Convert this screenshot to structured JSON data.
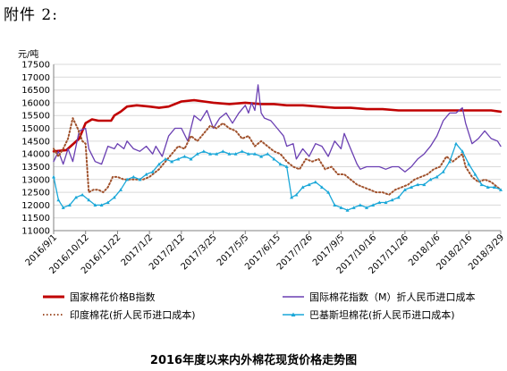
{
  "header": {
    "text": "附件 2:"
  },
  "caption": "2016年度以来内外棉花现货价格走势图",
  "colors": {
    "china_b": "#c00000",
    "intl_m": "#6a3fb2",
    "india": "#a0522d",
    "pakistan": "#1aa7d8",
    "grid": "#d9d9d9",
    "axis": "#808080"
  },
  "chart_data": {
    "type": "line",
    "title": "",
    "ylabel": "元/吨",
    "xlabel": "",
    "ylim": [
      11000,
      17500
    ],
    "y_ticks": [
      11000,
      11500,
      12000,
      12500,
      13000,
      13500,
      14000,
      14500,
      15000,
      15500,
      16000,
      16500,
      17000,
      17500
    ],
    "x_ticks": [
      "2016/9/1",
      "2016/10/12",
      "2016/11/22",
      "2017/1/2",
      "2017/2/12",
      "2017/3/25",
      "2017/5/5",
      "2017/6/15",
      "2017/7/26",
      "2017/9/5",
      "2017/10/16",
      "2017/11/26",
      "2018/1/6",
      "2018/2/16",
      "2018/3/29"
    ],
    "x_range_index": [
      0,
      14
    ],
    "grid": true,
    "legend_position": "bottom",
    "series": [
      {
        "name": "国家棉花价格B指数",
        "style": "solid-thick",
        "points": [
          [
            0,
            14100
          ],
          [
            0.4,
            14150
          ],
          [
            0.8,
            14600
          ],
          [
            1.0,
            15200
          ],
          [
            1.2,
            15350
          ],
          [
            1.4,
            15300
          ],
          [
            1.6,
            15300
          ],
          [
            1.8,
            15300
          ],
          [
            1.9,
            15500
          ],
          [
            2.1,
            15650
          ],
          [
            2.3,
            15850
          ],
          [
            2.6,
            15900
          ],
          [
            3.0,
            15850
          ],
          [
            3.3,
            15800
          ],
          [
            3.6,
            15850
          ],
          [
            4.0,
            16050
          ],
          [
            4.4,
            16100
          ],
          [
            4.7,
            16050
          ],
          [
            5.0,
            16000
          ],
          [
            5.5,
            15950
          ],
          [
            6.0,
            16000
          ],
          [
            6.5,
            15950
          ],
          [
            6.9,
            15950
          ],
          [
            7.3,
            15900
          ],
          [
            7.8,
            15900
          ],
          [
            8.3,
            15850
          ],
          [
            8.8,
            15800
          ],
          [
            9.3,
            15800
          ],
          [
            9.8,
            15750
          ],
          [
            10.3,
            15750
          ],
          [
            10.8,
            15700
          ],
          [
            11.3,
            15700
          ],
          [
            11.8,
            15700
          ],
          [
            12.3,
            15700
          ],
          [
            12.8,
            15700
          ],
          [
            13.3,
            15700
          ],
          [
            13.7,
            15700
          ],
          [
            14.0,
            15650
          ]
        ]
      },
      {
        "name": "国际棉花指数（M）折人民币进口成本",
        "style": "solid",
        "points": [
          [
            0,
            13700
          ],
          [
            0.15,
            14100
          ],
          [
            0.3,
            13600
          ],
          [
            0.45,
            14200
          ],
          [
            0.6,
            13700
          ],
          [
            0.8,
            14900
          ],
          [
            1.0,
            15000
          ],
          [
            1.1,
            14200
          ],
          [
            1.3,
            13700
          ],
          [
            1.5,
            13600
          ],
          [
            1.7,
            14300
          ],
          [
            1.9,
            14200
          ],
          [
            2.0,
            14400
          ],
          [
            2.2,
            14200
          ],
          [
            2.3,
            14500
          ],
          [
            2.5,
            14200
          ],
          [
            2.7,
            14100
          ],
          [
            2.9,
            14300
          ],
          [
            3.1,
            14000
          ],
          [
            3.2,
            14300
          ],
          [
            3.4,
            13900
          ],
          [
            3.6,
            14700
          ],
          [
            3.8,
            15000
          ],
          [
            4.0,
            15000
          ],
          [
            4.2,
            14500
          ],
          [
            4.4,
            15500
          ],
          [
            4.6,
            15300
          ],
          [
            4.8,
            15700
          ],
          [
            5.0,
            15000
          ],
          [
            5.2,
            15400
          ],
          [
            5.4,
            15600
          ],
          [
            5.6,
            15200
          ],
          [
            5.8,
            15600
          ],
          [
            6.0,
            15900
          ],
          [
            6.1,
            15600
          ],
          [
            6.2,
            16000
          ],
          [
            6.3,
            15700
          ],
          [
            6.4,
            16700
          ],
          [
            6.5,
            15600
          ],
          [
            6.6,
            15400
          ],
          [
            6.8,
            15300
          ],
          [
            7.0,
            15000
          ],
          [
            7.2,
            14700
          ],
          [
            7.3,
            14300
          ],
          [
            7.5,
            14400
          ],
          [
            7.6,
            13800
          ],
          [
            7.8,
            14200
          ],
          [
            8.0,
            13900
          ],
          [
            8.2,
            14400
          ],
          [
            8.4,
            14300
          ],
          [
            8.6,
            13900
          ],
          [
            8.8,
            14500
          ],
          [
            9.0,
            14200
          ],
          [
            9.1,
            14800
          ],
          [
            9.3,
            14200
          ],
          [
            9.5,
            13600
          ],
          [
            9.6,
            13400
          ],
          [
            9.8,
            13500
          ],
          [
            10.0,
            13500
          ],
          [
            10.2,
            13500
          ],
          [
            10.4,
            13400
          ],
          [
            10.6,
            13500
          ],
          [
            10.8,
            13500
          ],
          [
            11.0,
            13300
          ],
          [
            11.2,
            13500
          ],
          [
            11.4,
            13800
          ],
          [
            11.6,
            14000
          ],
          [
            11.8,
            14300
          ],
          [
            12.0,
            14700
          ],
          [
            12.2,
            15300
          ],
          [
            12.4,
            15600
          ],
          [
            12.6,
            15600
          ],
          [
            12.8,
            15800
          ],
          [
            12.9,
            15200
          ],
          [
            13.0,
            14800
          ],
          [
            13.1,
            14400
          ],
          [
            13.3,
            14600
          ],
          [
            13.5,
            14900
          ],
          [
            13.7,
            14600
          ],
          [
            13.9,
            14500
          ],
          [
            14.0,
            14300
          ]
        ]
      },
      {
        "name": "印度棉花(折人民币进口成本)",
        "style": "dotted",
        "points": [
          [
            0,
            14200
          ],
          [
            0.15,
            13900
          ],
          [
            0.3,
            14200
          ],
          [
            0.45,
            14600
          ],
          [
            0.6,
            15400
          ],
          [
            0.75,
            15000
          ],
          [
            0.9,
            14500
          ],
          [
            1.0,
            14400
          ],
          [
            1.1,
            12500
          ],
          [
            1.25,
            12600
          ],
          [
            1.4,
            12600
          ],
          [
            1.55,
            12500
          ],
          [
            1.7,
            12700
          ],
          [
            1.85,
            13100
          ],
          [
            2.0,
            13100
          ],
          [
            2.2,
            13000
          ],
          [
            2.5,
            13000
          ],
          [
            2.8,
            13000
          ],
          [
            3.0,
            13100
          ],
          [
            3.3,
            13400
          ],
          [
            3.5,
            13700
          ],
          [
            3.7,
            14000
          ],
          [
            3.9,
            14300
          ],
          [
            4.1,
            14200
          ],
          [
            4.3,
            14700
          ],
          [
            4.5,
            14500
          ],
          [
            4.7,
            14800
          ],
          [
            4.9,
            15100
          ],
          [
            5.1,
            15000
          ],
          [
            5.3,
            15200
          ],
          [
            5.5,
            15000
          ],
          [
            5.7,
            14900
          ],
          [
            5.9,
            14600
          ],
          [
            6.1,
            14700
          ],
          [
            6.3,
            14300
          ],
          [
            6.5,
            14500
          ],
          [
            6.7,
            14300
          ],
          [
            6.9,
            14100
          ],
          [
            7.1,
            14000
          ],
          [
            7.3,
            13700
          ],
          [
            7.5,
            13500
          ],
          [
            7.7,
            13400
          ],
          [
            7.9,
            13800
          ],
          [
            8.1,
            13700
          ],
          [
            8.3,
            13800
          ],
          [
            8.5,
            13400
          ],
          [
            8.7,
            13500
          ],
          [
            8.9,
            13200
          ],
          [
            9.1,
            13200
          ],
          [
            9.3,
            13000
          ],
          [
            9.5,
            12800
          ],
          [
            9.7,
            12700
          ],
          [
            9.9,
            12600
          ],
          [
            10.1,
            12500
          ],
          [
            10.3,
            12500
          ],
          [
            10.5,
            12400
          ],
          [
            10.7,
            12600
          ],
          [
            10.9,
            12700
          ],
          [
            11.1,
            12800
          ],
          [
            11.3,
            13000
          ],
          [
            11.5,
            13100
          ],
          [
            11.7,
            13200
          ],
          [
            11.9,
            13400
          ],
          [
            12.1,
            13500
          ],
          [
            12.3,
            13900
          ],
          [
            12.5,
            13700
          ],
          [
            12.7,
            13900
          ],
          [
            12.8,
            14000
          ],
          [
            12.9,
            13500
          ],
          [
            13.1,
            13100
          ],
          [
            13.3,
            12900
          ],
          [
            13.5,
            13000
          ],
          [
            13.7,
            12900
          ],
          [
            13.9,
            12700
          ],
          [
            14.0,
            12600
          ]
        ]
      },
      {
        "name": "巴基斯坦棉花(折人民币进口成本)",
        "style": "solid-markers",
        "points": [
          [
            0,
            13100
          ],
          [
            0.15,
            12200
          ],
          [
            0.3,
            11900
          ],
          [
            0.5,
            12000
          ],
          [
            0.7,
            12300
          ],
          [
            0.9,
            12400
          ],
          [
            1.1,
            12200
          ],
          [
            1.3,
            12000
          ],
          [
            1.5,
            12000
          ],
          [
            1.7,
            12100
          ],
          [
            1.9,
            12300
          ],
          [
            2.1,
            12600
          ],
          [
            2.3,
            13000
          ],
          [
            2.5,
            13100
          ],
          [
            2.7,
            13000
          ],
          [
            2.9,
            13200
          ],
          [
            3.1,
            13300
          ],
          [
            3.3,
            13600
          ],
          [
            3.5,
            13800
          ],
          [
            3.7,
            13700
          ],
          [
            3.9,
            13800
          ],
          [
            4.1,
            13900
          ],
          [
            4.3,
            13800
          ],
          [
            4.5,
            14000
          ],
          [
            4.7,
            14100
          ],
          [
            4.9,
            14000
          ],
          [
            5.1,
            14000
          ],
          [
            5.3,
            14100
          ],
          [
            5.5,
            14000
          ],
          [
            5.7,
            14000
          ],
          [
            5.9,
            14100
          ],
          [
            6.1,
            14000
          ],
          [
            6.3,
            14000
          ],
          [
            6.5,
            13900
          ],
          [
            6.7,
            14000
          ],
          [
            6.9,
            13800
          ],
          [
            7.1,
            13600
          ],
          [
            7.3,
            13500
          ],
          [
            7.45,
            12300
          ],
          [
            7.6,
            12400
          ],
          [
            7.8,
            12700
          ],
          [
            8.0,
            12800
          ],
          [
            8.2,
            12900
          ],
          [
            8.4,
            12700
          ],
          [
            8.6,
            12500
          ],
          [
            8.8,
            12000
          ],
          [
            9.0,
            11900
          ],
          [
            9.2,
            11800
          ],
          [
            9.4,
            11900
          ],
          [
            9.6,
            12000
          ],
          [
            9.8,
            11900
          ],
          [
            10.0,
            12000
          ],
          [
            10.2,
            12100
          ],
          [
            10.4,
            12100
          ],
          [
            10.6,
            12200
          ],
          [
            10.8,
            12300
          ],
          [
            11.0,
            12600
          ],
          [
            11.2,
            12700
          ],
          [
            11.4,
            12800
          ],
          [
            11.6,
            12800
          ],
          [
            11.8,
            13000
          ],
          [
            12.0,
            13100
          ],
          [
            12.2,
            13300
          ],
          [
            12.4,
            13700
          ],
          [
            12.6,
            14400
          ],
          [
            12.8,
            14100
          ],
          [
            13.0,
            13600
          ],
          [
            13.2,
            13200
          ],
          [
            13.4,
            12800
          ],
          [
            13.6,
            12700
          ],
          [
            13.8,
            12700
          ],
          [
            14.0,
            12600
          ]
        ]
      }
    ]
  }
}
